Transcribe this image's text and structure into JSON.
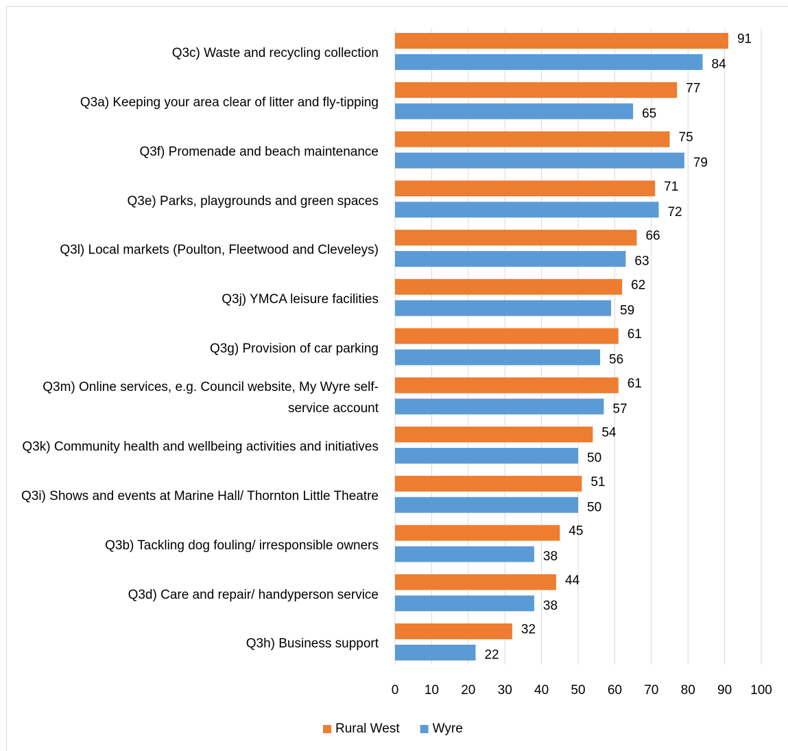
{
  "chart_data": {
    "type": "bar",
    "orientation": "horizontal",
    "categories": [
      "Q3c) Waste and recycling collection",
      "Q3a) Keeping your area clear of litter and fly-tipping",
      "Q3f) Promenade and beach maintenance",
      "Q3e) Parks, playgrounds and green spaces",
      "Q3l) Local markets (Poulton, Fleetwood and Cleveleys)",
      "Q3j) YMCA leisure facilities",
      "Q3g) Provision of car parking",
      "Q3m) Online services, e.g. Council website, My Wyre self-service account",
      "Q3k) Community health and wellbeing activities and initiatives",
      "Q3i) Shows and events at Marine Hall/ Thornton Little Theatre",
      "Q3b) Tackling dog fouling/ irresponsible owners",
      "Q3d) Care and repair/ handyperson service",
      "Q3h) Business support"
    ],
    "series": [
      {
        "name": "Rural West",
        "color": "#ed7d31",
        "values": [
          91,
          77,
          75,
          71,
          66,
          62,
          61,
          61,
          54,
          51,
          45,
          44,
          32
        ]
      },
      {
        "name": "Wyre",
        "color": "#5b9bd5",
        "values": [
          84,
          65,
          79,
          72,
          63,
          59,
          56,
          57,
          50,
          50,
          38,
          38,
          22
        ]
      }
    ],
    "xlim": [
      0,
      100
    ],
    "xticks": [
      0,
      10,
      20,
      30,
      40,
      50,
      60,
      70,
      80,
      90,
      100
    ],
    "grid": true,
    "legend": "bottom"
  }
}
